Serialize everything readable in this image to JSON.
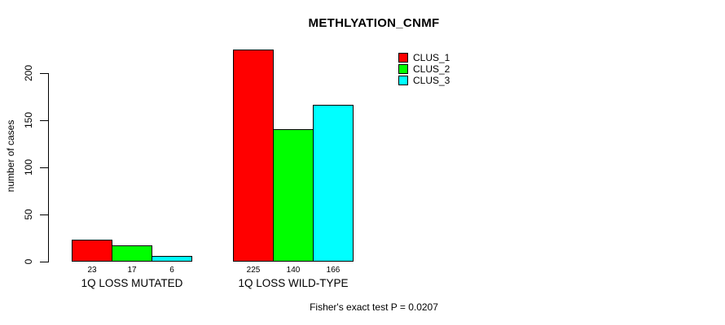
{
  "chart_data": {
    "type": "bar",
    "title": "METHLYATION_CNMF",
    "ylabel": "number of cases",
    "xlabel": "",
    "categories": [
      "1Q LOSS MUTATED",
      "1Q LOSS WILD-TYPE"
    ],
    "series": [
      {
        "name": "CLUS_1",
        "color": "#ff0000",
        "values": [
          23,
          225
        ]
      },
      {
        "name": "CLUS_2",
        "color": "#00ff00",
        "values": [
          17,
          140
        ]
      },
      {
        "name": "CLUS_3",
        "color": "#00ffff",
        "values": [
          6,
          166
        ]
      }
    ],
    "y_ticks": [
      0,
      50,
      100,
      150,
      200
    ],
    "bar_border_color": "#000000",
    "axis_color": "#000000",
    "background_color": "#ffffff",
    "grid": false,
    "legend_position": "top-right",
    "value_labels_shown": true,
    "annotation": "Fisher's exact test P = 0.0207"
  }
}
